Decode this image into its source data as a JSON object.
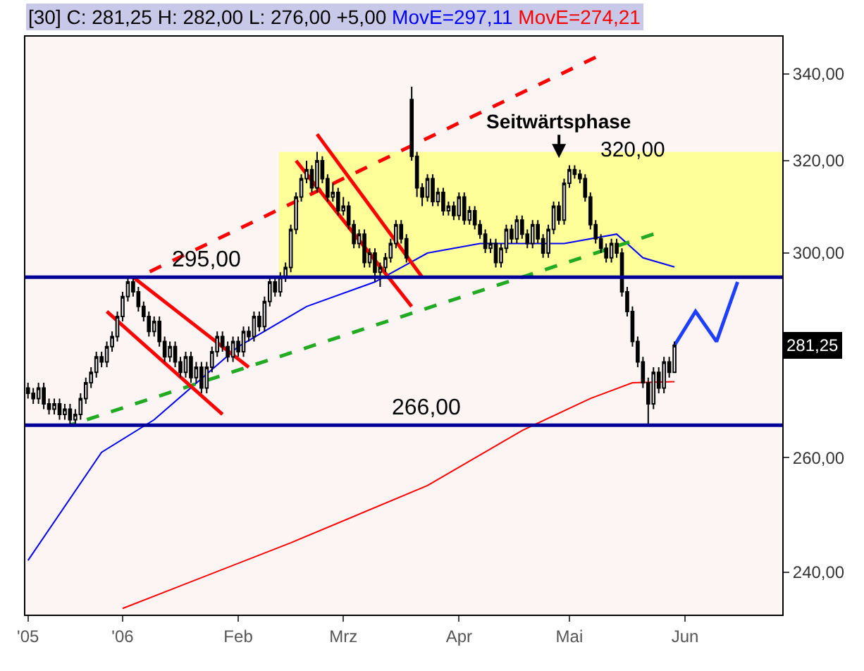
{
  "chart_data": {
    "type": "candlestick",
    "title": "[30] C: 281,25 H: 282,00 L: 276,00 +5,00",
    "categories": [
      "'05",
      null,
      null,
      null,
      null,
      null,
      null,
      null,
      null,
      null,
      null,
      null,
      null,
      null,
      null,
      null,
      null,
      null,
      "'06",
      null,
      null,
      null,
      null,
      null,
      null,
      null,
      null,
      null,
      null,
      null,
      null,
      null,
      null,
      null,
      null,
      null,
      null,
      null,
      null,
      null,
      "Feb",
      null,
      null,
      null,
      null,
      null,
      null,
      null,
      null,
      null,
      null,
      null,
      null,
      null,
      null,
      null,
      null,
      null,
      null,
      null,
      "Mrz",
      null,
      null,
      null,
      null,
      null,
      null,
      null,
      null,
      null,
      null,
      null,
      null,
      null,
      null,
      null,
      null,
      null,
      null,
      null,
      null,
      null,
      "Apr",
      null,
      null,
      null,
      null,
      null,
      null,
      null,
      null,
      null,
      null,
      null,
      null,
      null,
      null,
      null,
      null,
      null,
      null,
      null,
      null,
      "Mai",
      null,
      null,
      null,
      null,
      null,
      null,
      null,
      null,
      null,
      null,
      null,
      null,
      null,
      null,
      null,
      null,
      null,
      null,
      null,
      null,
      null,
      "Jun",
      null,
      null,
      null,
      null,
      null,
      null,
      null,
      null,
      null,
      null,
      null,
      null,
      null,
      null,
      null,
      null,
      null,
      null
    ],
    "ohlc": [
      [
        273,
        274,
        271,
        272
      ],
      [
        272,
        273,
        270,
        271
      ],
      [
        271,
        274,
        270,
        273
      ],
      [
        273,
        274,
        269,
        270
      ],
      [
        270,
        271,
        268,
        269
      ],
      [
        269,
        271,
        268,
        270
      ],
      [
        270,
        271,
        267,
        268
      ],
      [
        268,
        270,
        267,
        269
      ],
      [
        269,
        270,
        266,
        267
      ],
      [
        267,
        269,
        266,
        268
      ],
      [
        268,
        272,
        267,
        271
      ],
      [
        271,
        275,
        270,
        274
      ],
      [
        274,
        277,
        273,
        276
      ],
      [
        276,
        280,
        275,
        279
      ],
      [
        279,
        280,
        277,
        278
      ],
      [
        278,
        282,
        277,
        281
      ],
      [
        281,
        284,
        280,
        283
      ],
      [
        283,
        288,
        282,
        287
      ],
      [
        287,
        292,
        286,
        291
      ],
      [
        291,
        295,
        290,
        294
      ],
      [
        294,
        295,
        291,
        292
      ],
      [
        292,
        293,
        288,
        289
      ],
      [
        289,
        290,
        286,
        287
      ],
      [
        287,
        288,
        283,
        284
      ],
      [
        284,
        287,
        283,
        286
      ],
      [
        286,
        287,
        281,
        282
      ],
      [
        282,
        283,
        278,
        279
      ],
      [
        279,
        282,
        278,
        281
      ],
      [
        281,
        282,
        277,
        278
      ],
      [
        278,
        279,
        275,
        276
      ],
      [
        276,
        280,
        275,
        279
      ],
      [
        279,
        280,
        274,
        275
      ],
      [
        275,
        278,
        274,
        277
      ],
      [
        277,
        278,
        272,
        273
      ],
      [
        273,
        278,
        272,
        277
      ],
      [
        277,
        281,
        276,
        280
      ],
      [
        280,
        284,
        279,
        283
      ],
      [
        283,
        284,
        280,
        281
      ],
      [
        281,
        282,
        278,
        279
      ],
      [
        279,
        283,
        278,
        282
      ],
      [
        282,
        283,
        279,
        280
      ],
      [
        280,
        285,
        279,
        284
      ],
      [
        284,
        285,
        282,
        283
      ],
      [
        283,
        288,
        282,
        287
      ],
      [
        287,
        288,
        284,
        285
      ],
      [
        285,
        291,
        284,
        290
      ],
      [
        290,
        295,
        289,
        294
      ],
      [
        294,
        295,
        291,
        292
      ],
      [
        292,
        296,
        291,
        295
      ],
      [
        295,
        298,
        294,
        297
      ],
      [
        297,
        306,
        296,
        305
      ],
      [
        305,
        313,
        304,
        312
      ],
      [
        312,
        317,
        311,
        316
      ],
      [
        316,
        320,
        315,
        318
      ],
      [
        318,
        319,
        313,
        314
      ],
      [
        314,
        322,
        313,
        320
      ],
      [
        320,
        321,
        315,
        316
      ],
      [
        316,
        317,
        311,
        312
      ],
      [
        312,
        315,
        311,
        313
      ],
      [
        313,
        314,
        308,
        309
      ],
      [
        309,
        312,
        308,
        310
      ],
      [
        310,
        311,
        305,
        306
      ],
      [
        306,
        307,
        301,
        302
      ],
      [
        302,
        305,
        301,
        304
      ],
      [
        304,
        305,
        297,
        298
      ],
      [
        298,
        301,
        297,
        300
      ],
      [
        300,
        301,
        294,
        296
      ],
      [
        296,
        298,
        293,
        297
      ],
      [
        297,
        300,
        296,
        299
      ],
      [
        299,
        303,
        298,
        302
      ],
      [
        302,
        307,
        301,
        306
      ],
      [
        306,
        307,
        302,
        303
      ],
      [
        303,
        304,
        298,
        299
      ],
      [
        334,
        337,
        320,
        321
      ],
      [
        321,
        322,
        312,
        314
      ],
      [
        314,
        315,
        310,
        312
      ],
      [
        312,
        317,
        311,
        316
      ],
      [
        316,
        317,
        310,
        311
      ],
      [
        311,
        314,
        310,
        313
      ],
      [
        313,
        314,
        308,
        309
      ],
      [
        309,
        311,
        308,
        310
      ],
      [
        310,
        311,
        307,
        308
      ],
      [
        308,
        313,
        307,
        312
      ],
      [
        312,
        313,
        306,
        307
      ],
      [
        307,
        310,
        306,
        309
      ],
      [
        309,
        310,
        305,
        306
      ],
      [
        306,
        307,
        303,
        304
      ],
      [
        304,
        305,
        300,
        301
      ],
      [
        301,
        303,
        300,
        302
      ],
      [
        302,
        303,
        297,
        298
      ],
      [
        298,
        302,
        297,
        301
      ],
      [
        301,
        306,
        300,
        305
      ],
      [
        305,
        306,
        302,
        303
      ],
      [
        303,
        308,
        302,
        307
      ],
      [
        307,
        308,
        303,
        304
      ],
      [
        304,
        305,
        301,
        302
      ],
      [
        302,
        307,
        301,
        306
      ],
      [
        306,
        307,
        302,
        303
      ],
      [
        303,
        304,
        299,
        300
      ],
      [
        300,
        306,
        299,
        305
      ],
      [
        305,
        311,
        304,
        310
      ],
      [
        310,
        311,
        306,
        307
      ],
      [
        307,
        316,
        306,
        315
      ],
      [
        315,
        319,
        314,
        318
      ],
      [
        318,
        319,
        316,
        317
      ],
      [
        317,
        318,
        315,
        316
      ],
      [
        316,
        317,
        311,
        312
      ],
      [
        312,
        313,
        305,
        306
      ],
      [
        306,
        307,
        302,
        303
      ],
      [
        303,
        304,
        300,
        301
      ],
      [
        301,
        302,
        298,
        299
      ],
      [
        299,
        303,
        298,
        302
      ],
      [
        302,
        303,
        299,
        300
      ],
      [
        300,
        301,
        291,
        292
      ],
      [
        292,
        293,
        287,
        288
      ],
      [
        288,
        289,
        281,
        282
      ],
      [
        282,
        283,
        277,
        278
      ],
      [
        278,
        279,
        273,
        274
      ],
      [
        274,
        275,
        266,
        270
      ],
      [
        270,
        277,
        269,
        276
      ],
      [
        276,
        277,
        272,
        273
      ],
      [
        273,
        279,
        272,
        278
      ],
      [
        278,
        279,
        275,
        276
      ],
      [
        276,
        282,
        276,
        281.25
      ],
      null,
      null,
      null,
      null,
      null,
      null,
      null,
      null,
      null,
      null,
      null,
      null,
      null,
      null,
      null,
      null,
      null,
      null,
      null,
      null
    ],
    "series": [
      {
        "name": "MovE=297,11",
        "type": "line",
        "color": "#0000ff",
        "values": [
          242,
          null,
          null,
          null,
          null,
          null,
          null,
          null,
          null,
          null,
          null,
          null,
          null,
          null,
          261,
          null,
          null,
          null,
          null,
          null,
          null,
          null,
          null,
          null,
          267,
          null,
          null,
          null,
          null,
          null,
          null,
          null,
          null,
          null,
          null,
          null,
          null,
          null,
          null,
          null,
          281,
          null,
          null,
          null,
          null,
          null,
          null,
          null,
          null,
          null,
          null,
          null,
          null,
          289,
          null,
          null,
          null,
          null,
          null,
          null,
          null,
          null,
          null,
          null,
          null,
          null,
          294,
          null,
          null,
          null,
          null,
          null,
          null,
          null,
          null,
          null,
          300,
          null,
          null,
          null,
          null,
          null,
          null,
          null,
          null,
          null,
          302,
          null,
          null,
          null,
          null,
          null,
          null,
          null,
          null,
          null,
          null,
          null,
          null,
          null,
          null,
          null,
          302,
          null,
          null,
          null,
          null,
          null,
          null,
          null,
          null,
          null,
          304,
          null,
          null,
          null,
          null,
          299,
          null,
          null,
          null,
          null,
          null,
          297.11,
          null,
          null,
          null,
          null,
          null,
          null,
          null,
          null,
          null,
          null,
          null,
          null,
          null,
          null,
          null,
          null,
          null,
          null,
          null,
          null
        ]
      },
      {
        "name": "MovE=274,21",
        "type": "line",
        "color": "#ff0000",
        "values": [
          null,
          null,
          null,
          null,
          null,
          null,
          null,
          null,
          null,
          null,
          null,
          null,
          null,
          null,
          null,
          null,
          null,
          null,
          234,
          null,
          null,
          null,
          null,
          null,
          null,
          null,
          null,
          null,
          null,
          null,
          null,
          null,
          null,
          null,
          null,
          null,
          null,
          null,
          null,
          null,
          null,
          null,
          null,
          null,
          null,
          null,
          null,
          null,
          null,
          null,
          245,
          null,
          null,
          null,
          null,
          null,
          null,
          null,
          null,
          null,
          null,
          null,
          null,
          null,
          null,
          null,
          null,
          null,
          null,
          null,
          null,
          null,
          null,
          null,
          null,
          null,
          255,
          null,
          null,
          null,
          null,
          null,
          null,
          null,
          null,
          null,
          null,
          null,
          null,
          null,
          null,
          null,
          null,
          null,
          265,
          null,
          null,
          null,
          null,
          null,
          null,
          null,
          null,
          null,
          null,
          null,
          null,
          271,
          null,
          null,
          null,
          null,
          null,
          null,
          null,
          274,
          null,
          null,
          null,
          null,
          null,
          null,
          null,
          274.21,
          null,
          null,
          null,
          null,
          null,
          null,
          null,
          null,
          null,
          null,
          null,
          null,
          null,
          null,
          null,
          null,
          null,
          null,
          null,
          null
        ]
      },
      {
        "type": "line",
        "color": "#ff0000",
        "line_style": "dashed",
        "values": [
          null,
          null,
          null,
          null,
          null,
          null,
          null,
          null,
          null,
          null,
          null,
          null,
          null,
          null,
          null,
          null,
          null,
          null,
          null,
          null,
          null,
          295,
          null,
          null,
          null,
          null,
          null,
          null,
          null,
          null,
          null,
          null,
          null,
          null,
          null,
          null,
          null,
          null,
          null,
          null,
          null,
          null,
          null,
          null,
          null,
          null,
          null,
          null,
          null,
          null,
          null,
          null,
          null,
          null,
          null,
          null,
          null,
          null,
          null,
          null,
          null,
          null,
          null,
          null,
          null,
          null,
          null,
          null,
          null,
          null,
          null,
          null,
          null,
          null,
          null,
          null,
          null,
          null,
          null,
          null,
          null,
          null,
          null,
          null,
          null,
          null,
          null,
          null,
          null,
          null,
          null,
          null,
          null,
          null,
          null,
          null,
          null,
          null,
          null,
          null,
          null,
          null,
          null,
          null,
          null,
          null,
          null,
          null,
          344,
          null,
          null,
          null,
          null,
          null,
          null,
          null,
          null,
          null,
          null,
          null,
          null,
          null,
          null,
          null,
          null,
          null,
          null,
          null,
          null,
          null,
          null,
          null,
          null,
          null,
          null,
          null,
          null,
          null,
          null,
          null,
          null,
          null,
          null,
          null
        ]
      },
      {
        "type": "line",
        "color": "#22aa22",
        "line_style": "dashed",
        "values": [
          null,
          null,
          null,
          null,
          null,
          null,
          null,
          null,
          266,
          null,
          null,
          null,
          null,
          null,
          null,
          null,
          null,
          null,
          null,
          null,
          null,
          null,
          null,
          null,
          null,
          null,
          null,
          null,
          null,
          null,
          null,
          null,
          null,
          null,
          null,
          null,
          null,
          null,
          null,
          null,
          null,
          null,
          null,
          null,
          null,
          null,
          null,
          null,
          null,
          null,
          null,
          null,
          null,
          null,
          null,
          null,
          null,
          null,
          null,
          null,
          null,
          null,
          null,
          null,
          null,
          null,
          null,
          null,
          null,
          null,
          null,
          null,
          null,
          null,
          null,
          null,
          null,
          null,
          null,
          null,
          null,
          null,
          null,
          null,
          null,
          null,
          null,
          null,
          null,
          null,
          null,
          null,
          null,
          null,
          null,
          null,
          null,
          null,
          null,
          null,
          null,
          null,
          null,
          null,
          null,
          null,
          null,
          null,
          null,
          null,
          null,
          null,
          null,
          null,
          null,
          null,
          null,
          null,
          null,
          304,
          null,
          null,
          null,
          null,
          null,
          null,
          null,
          null,
          null,
          null,
          null,
          null,
          null,
          null,
          null,
          null,
          null,
          null,
          null,
          null,
          null,
          null,
          null,
          null
        ]
      },
      {
        "type": "line",
        "color": "#ff0000",
        "values": [
          null,
          null,
          null,
          null,
          null,
          null,
          null,
          null,
          null,
          null,
          null,
          null,
          null,
          null,
          null,
          288,
          null,
          null,
          null,
          null,
          null,
          null,
          null,
          null,
          null,
          null,
          null,
          null,
          null,
          null,
          null,
          null,
          null,
          null,
          null,
          null,
          null,
          268,
          null,
          null,
          null,
          null,
          null,
          null,
          null,
          null,
          null,
          null,
          null,
          null,
          null,
          null,
          null,
          null,
          null,
          null,
          null,
          null,
          null,
          null,
          null,
          null,
          null,
          null,
          null,
          null,
          null,
          null,
          null,
          null,
          null,
          null,
          null,
          null,
          null,
          null,
          null,
          null,
          null,
          null,
          null,
          null,
          null,
          null,
          null,
          null,
          null,
          null,
          null,
          null,
          null,
          null,
          null,
          null,
          null,
          null,
          null,
          null,
          null,
          null,
          null,
          null,
          null,
          null,
          null,
          null,
          null,
          null,
          null,
          null,
          null,
          null,
          null,
          null,
          null,
          null,
          null,
          null,
          null,
          null,
          null,
          null,
          null,
          null,
          null,
          null,
          null,
          null,
          null,
          null,
          null,
          null,
          null,
          null,
          null,
          null,
          null,
          null,
          null,
          null,
          null,
          null,
          null,
          null
        ]
      },
      {
        "type": "line",
        "color": "#ff0000",
        "values": [
          null,
          null,
          null,
          null,
          null,
          null,
          null,
          null,
          null,
          null,
          null,
          null,
          null,
          null,
          null,
          null,
          null,
          null,
          null,
          null,
          295,
          null,
          null,
          null,
          null,
          null,
          null,
          null,
          null,
          null,
          null,
          null,
          null,
          null,
          null,
          null,
          null,
          null,
          null,
          null,
          null,
          null,
          277,
          null,
          null,
          null,
          null,
          null,
          null,
          null,
          null,
          null,
          null,
          null,
          null,
          null,
          null,
          null,
          null,
          null,
          null,
          null,
          null,
          null,
          null,
          null,
          null,
          null,
          null,
          null,
          null,
          null,
          null,
          null,
          null,
          null,
          null,
          null,
          null,
          null,
          null,
          null,
          null,
          null,
          null,
          null,
          null,
          null,
          null,
          null,
          null,
          null,
          null,
          null,
          null,
          null,
          null,
          null,
          null,
          null,
          null,
          null,
          null,
          null,
          null,
          null,
          null,
          null,
          null,
          null,
          null,
          null,
          null,
          null,
          null,
          null,
          null,
          null,
          null,
          null,
          null,
          null,
          null,
          null,
          null,
          null,
          null,
          null,
          null,
          null,
          null,
          null,
          null,
          null,
          null,
          null,
          null,
          null,
          null,
          null,
          null,
          null,
          null,
          null
        ]
      },
      {
        "type": "line",
        "color": "#ff0000",
        "values": [
          null,
          null,
          null,
          null,
          null,
          null,
          null,
          null,
          null,
          null,
          null,
          null,
          null,
          null,
          null,
          null,
          null,
          null,
          null,
          null,
          null,
          null,
          null,
          null,
          null,
          null,
          null,
          null,
          null,
          null,
          null,
          null,
          null,
          null,
          null,
          null,
          null,
          null,
          null,
          null,
          null,
          null,
          null,
          null,
          null,
          null,
          null,
          null,
          null,
          null,
          null,
          null,
          null,
          null,
          null,
          326,
          null,
          null,
          null,
          null,
          null,
          null,
          null,
          null,
          null,
          null,
          null,
          null,
          null,
          null,
          null,
          null,
          null,
          null,
          null,
          295,
          null,
          null,
          null,
          null,
          null,
          null,
          null,
          null,
          null,
          null,
          null,
          null,
          null,
          null,
          null,
          null,
          null,
          null,
          null,
          null,
          null,
          null,
          null,
          null,
          null,
          null,
          null,
          null,
          null,
          null,
          null,
          null,
          null,
          null,
          null,
          null,
          null,
          null,
          null,
          null,
          null,
          null,
          null,
          null,
          null,
          null,
          null,
          null,
          null,
          null,
          null,
          null,
          null,
          null,
          null,
          null,
          null,
          null,
          null,
          null,
          null,
          null,
          null,
          null,
          null,
          null,
          null,
          null
        ]
      },
      {
        "type": "line",
        "color": "#ff0000",
        "values": [
          null,
          null,
          null,
          null,
          null,
          null,
          null,
          null,
          null,
          null,
          null,
          null,
          null,
          null,
          null,
          null,
          null,
          null,
          null,
          null,
          null,
          null,
          null,
          null,
          null,
          null,
          null,
          null,
          null,
          null,
          null,
          null,
          null,
          null,
          null,
          null,
          null,
          null,
          null,
          null,
          null,
          null,
          null,
          null,
          null,
          null,
          null,
          null,
          null,
          null,
          null,
          320,
          null,
          null,
          null,
          null,
          null,
          null,
          null,
          null,
          null,
          null,
          null,
          null,
          null,
          null,
          null,
          null,
          null,
          null,
          null,
          null,
          null,
          289,
          null,
          null,
          null,
          null,
          null,
          null,
          null,
          null,
          null,
          null,
          null,
          null,
          null,
          null,
          null,
          null,
          null,
          null,
          null,
          null,
          null,
          null,
          null,
          null,
          null,
          null,
          null,
          null,
          null,
          null,
          null,
          null,
          null,
          null,
          null,
          null,
          null,
          null,
          null,
          null,
          null,
          null,
          null,
          null,
          null,
          null,
          null,
          null,
          null,
          null,
          null,
          null,
          null,
          null,
          null,
          null,
          null,
          null,
          null,
          null,
          null,
          null,
          null,
          null,
          null,
          null,
          null,
          null,
          null,
          null
        ]
      },
      {
        "type": "line",
        "color": "#1f3fff",
        "values": [
          null,
          null,
          null,
          null,
          null,
          null,
          null,
          null,
          null,
          null,
          null,
          null,
          null,
          null,
          null,
          null,
          null,
          null,
          null,
          null,
          null,
          null,
          null,
          null,
          null,
          null,
          null,
          null,
          null,
          null,
          null,
          null,
          null,
          null,
          null,
          null,
          null,
          null,
          null,
          null,
          null,
          null,
          null,
          null,
          null,
          null,
          null,
          null,
          null,
          null,
          null,
          null,
          null,
          null,
          null,
          null,
          null,
          null,
          null,
          null,
          null,
          null,
          null,
          null,
          null,
          null,
          null,
          null,
          null,
          null,
          null,
          null,
          null,
          null,
          null,
          null,
          null,
          null,
          null,
          null,
          null,
          null,
          null,
          null,
          null,
          null,
          null,
          null,
          null,
          null,
          null,
          null,
          null,
          null,
          null,
          null,
          null,
          null,
          null,
          null,
          null,
          null,
          null,
          null,
          null,
          null,
          null,
          null,
          null,
          null,
          null,
          null,
          null,
          null,
          null,
          null,
          null,
          null,
          null,
          null,
          null,
          null,
          null,
          281.25,
          null,
          null,
          null,
          288,
          null,
          null,
          null,
          282,
          null,
          null,
          null,
          294,
          null,
          null,
          null,
          null,
          null,
          null,
          null,
          null
        ]
      }
    ],
    "ylim": [
      233,
      349
    ],
    "yticks": [
      {
        "value": 240,
        "label": "240,00"
      },
      {
        "value": 260,
        "label": "260,00"
      },
      {
        "value": 280,
        "label": null
      },
      {
        "value": 300,
        "label": "300,00"
      },
      {
        "value": 320,
        "label": "320,00"
      },
      {
        "value": 340,
        "label": "340,00"
      }
    ],
    "log": true,
    "ref_lines": [
      {
        "axis": "y",
        "value": 295,
        "label": "295,00",
        "color": "#000099"
      },
      {
        "axis": "y",
        "value": 266,
        "label": "266,00",
        "color": "#000099"
      }
    ],
    "bands": [
      {
        "axis": "y",
        "from": 295,
        "to": 322,
        "color": "#ffff99"
      }
    ],
    "annotations": [
      "Seitwärtsphase",
      "320,00",
      "281,25"
    ]
  }
}
